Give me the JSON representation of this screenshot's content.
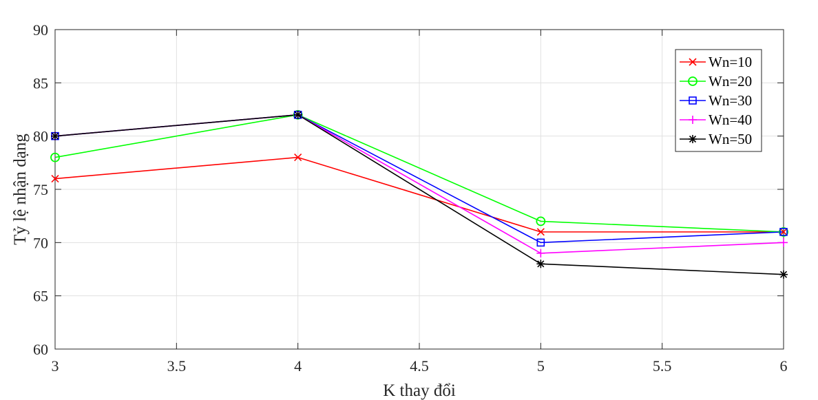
{
  "chart_data": {
    "type": "line",
    "xlabel": "K thay đổi",
    "ylabel": "Tỷ lệ nhận dạng",
    "xlim": [
      3,
      6
    ],
    "ylim": [
      60,
      90
    ],
    "x_ticks": [
      3,
      3.5,
      4,
      4.5,
      5,
      5.5,
      6
    ],
    "x_tick_labels": [
      "3",
      "3.5",
      "4",
      "4.5",
      "5",
      "5.5",
      "6"
    ],
    "y_ticks": [
      60,
      65,
      70,
      75,
      80,
      85,
      90
    ],
    "y_tick_labels": [
      "60",
      "65",
      "70",
      "75",
      "80",
      "85",
      "90"
    ],
    "grid": true,
    "legend_position": "top-right",
    "x": [
      3,
      4,
      5,
      6
    ],
    "series": [
      {
        "name": "Wn=10",
        "values": [
          76,
          78,
          71,
          71
        ],
        "color": "#ff0000",
        "marker": "x"
      },
      {
        "name": "Wn=20",
        "values": [
          78,
          82,
          72,
          71
        ],
        "color": "#00ff00",
        "marker": "o"
      },
      {
        "name": "Wn=30",
        "values": [
          80,
          82,
          70,
          71
        ],
        "color": "#0000ff",
        "marker": "s"
      },
      {
        "name": "Wn=40",
        "values": [
          80,
          82,
          69,
          70
        ],
        "color": "#ff00ff",
        "marker": "+"
      },
      {
        "name": "Wn=50",
        "values": [
          80,
          82,
          68,
          67
        ],
        "color": "#000000",
        "marker": "*"
      }
    ]
  }
}
